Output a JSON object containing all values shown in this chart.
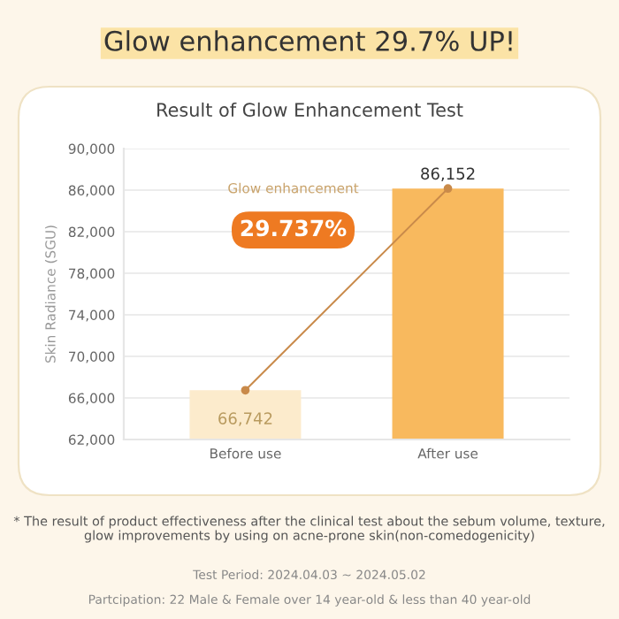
{
  "chart_data": {
    "type": "bar",
    "title": "Result of Glow Enhancement Test",
    "ylabel": "Skin Radiance (SGU)",
    "categories": [
      "Before use",
      "After use"
    ],
    "series": [
      {
        "colors": [
          "#fcebcc",
          "#f8b95e"
        ],
        "values": [
          66742,
          86152
        ],
        "value_labels": [
          "66,742",
          "86,152"
        ]
      },
      {
        "type": "line",
        "color": "#c98a4a",
        "values": [
          66742,
          86152
        ]
      }
    ],
    "marker": "circle",
    "ylim": [
      62000,
      90000
    ],
    "yticks": [
      {
        "value": 62000,
        "label": "62,000"
      },
      {
        "value": 66000,
        "label": "66,000"
      },
      {
        "value": 70000,
        "label": "70,000"
      },
      {
        "value": 74000,
        "label": "74,000"
      },
      {
        "value": 78000,
        "label": "78,000"
      },
      {
        "value": 82000,
        "label": "82,000"
      },
      {
        "value": 86000,
        "label": "86,000"
      },
      {
        "value": 90000,
        "label": "90,000"
      }
    ],
    "grid": "y",
    "annotations": [
      "Glow enhancement 29.7% UP!",
      "Glow enhancement",
      "29.737%",
      "* The result of product effectiveness after the clinical test about the sebum volume, texture, glow improvements by using on acne-prone skin(non-comedogenicity)",
      "Test Period: 2024.04.03 ~ 2024.05.02",
      "Partcipation: 22 Male & Female over 14 year-old & less than 40 year-old"
    ]
  }
}
